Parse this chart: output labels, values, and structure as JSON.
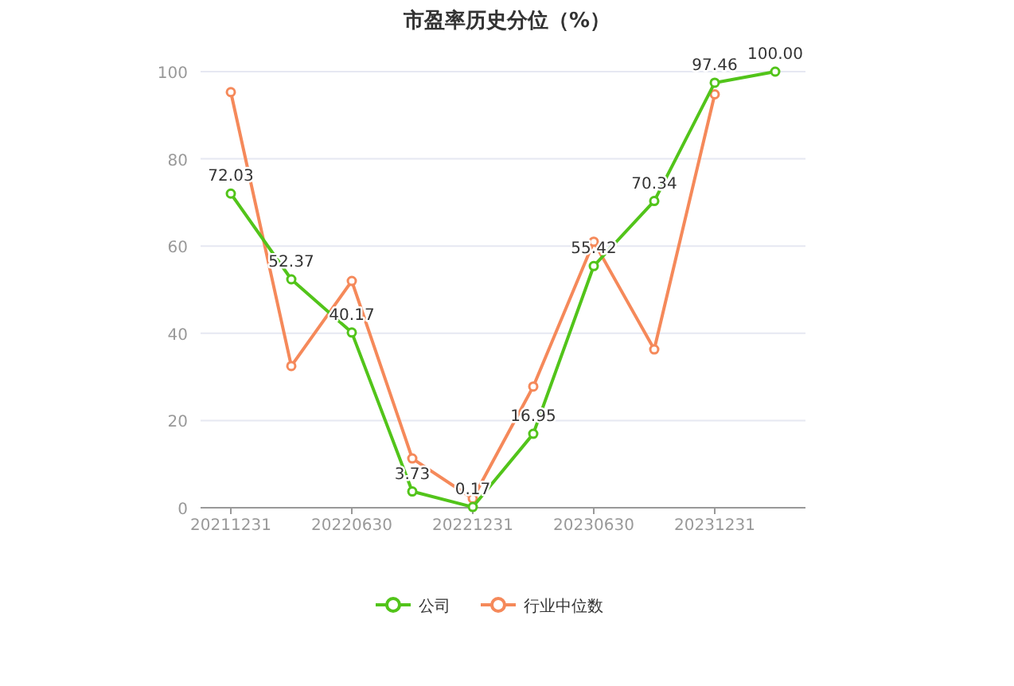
{
  "chart_data": {
    "type": "line",
    "title": "市盈率历史分位（%）",
    "categories": [
      "20211231",
      null,
      "20220630",
      null,
      "20221231",
      null,
      "20230630",
      null,
      "20231231",
      null
    ],
    "series": [
      {
        "name": "公司",
        "color": "#52c41a",
        "values": [
          72.03,
          52.37,
          40.17,
          3.73,
          0.17,
          16.95,
          55.42,
          70.34,
          97.46,
          100.0
        ],
        "value_labels": [
          "72.03",
          "52.37",
          "40.17",
          "3.73",
          "0.17",
          "16.95",
          "55.42",
          "70.34",
          "97.46",
          "100.00"
        ]
      },
      {
        "name": "行业中位数",
        "color": "#f5895a",
        "values": [
          95.3,
          32.5,
          52.0,
          11.3,
          2.1,
          27.8,
          61.0,
          36.3,
          94.8,
          null
        ]
      }
    ],
    "ylim": [
      0,
      100
    ],
    "yticks": [
      0,
      20,
      40,
      60,
      80,
      100
    ],
    "grid": "y",
    "legend": "bottom",
    "marker": "circle",
    "line_style": "solid"
  }
}
